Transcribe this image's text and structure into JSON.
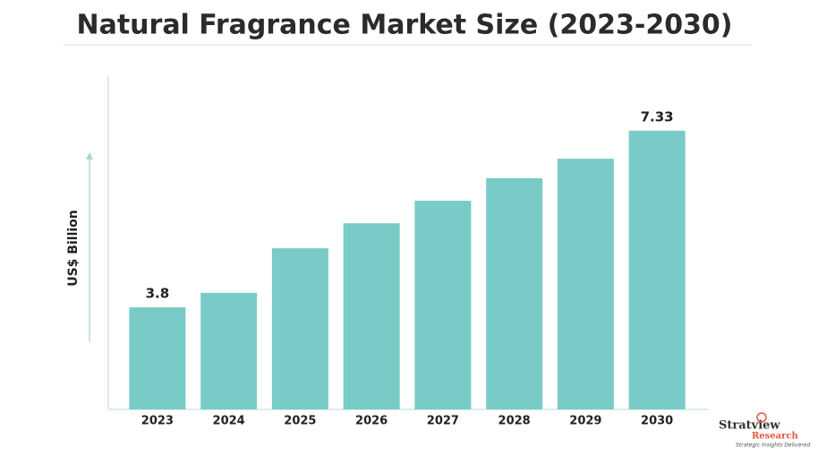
{
  "chart_data": {
    "type": "bar",
    "title": "Natural Fragrance Market Size (2023-2030)",
    "ylabel": "US$ Billion",
    "categories": [
      "2023",
      "2024",
      "2025",
      "2026",
      "2027",
      "2028",
      "2029",
      "2030"
    ],
    "values": [
      3.8,
      4.09,
      4.98,
      5.48,
      5.93,
      6.38,
      6.77,
      7.33
    ],
    "value_labels": [
      "3.8",
      null,
      null,
      null,
      null,
      null,
      null,
      "7.33"
    ],
    "color": "#79cbc7",
    "ylim": [
      1.76,
      8.42
    ],
    "grid": false
  },
  "logo": {
    "name": "Stratview",
    "sub": "Research",
    "tagline": "Strategic Insights Delivered"
  }
}
